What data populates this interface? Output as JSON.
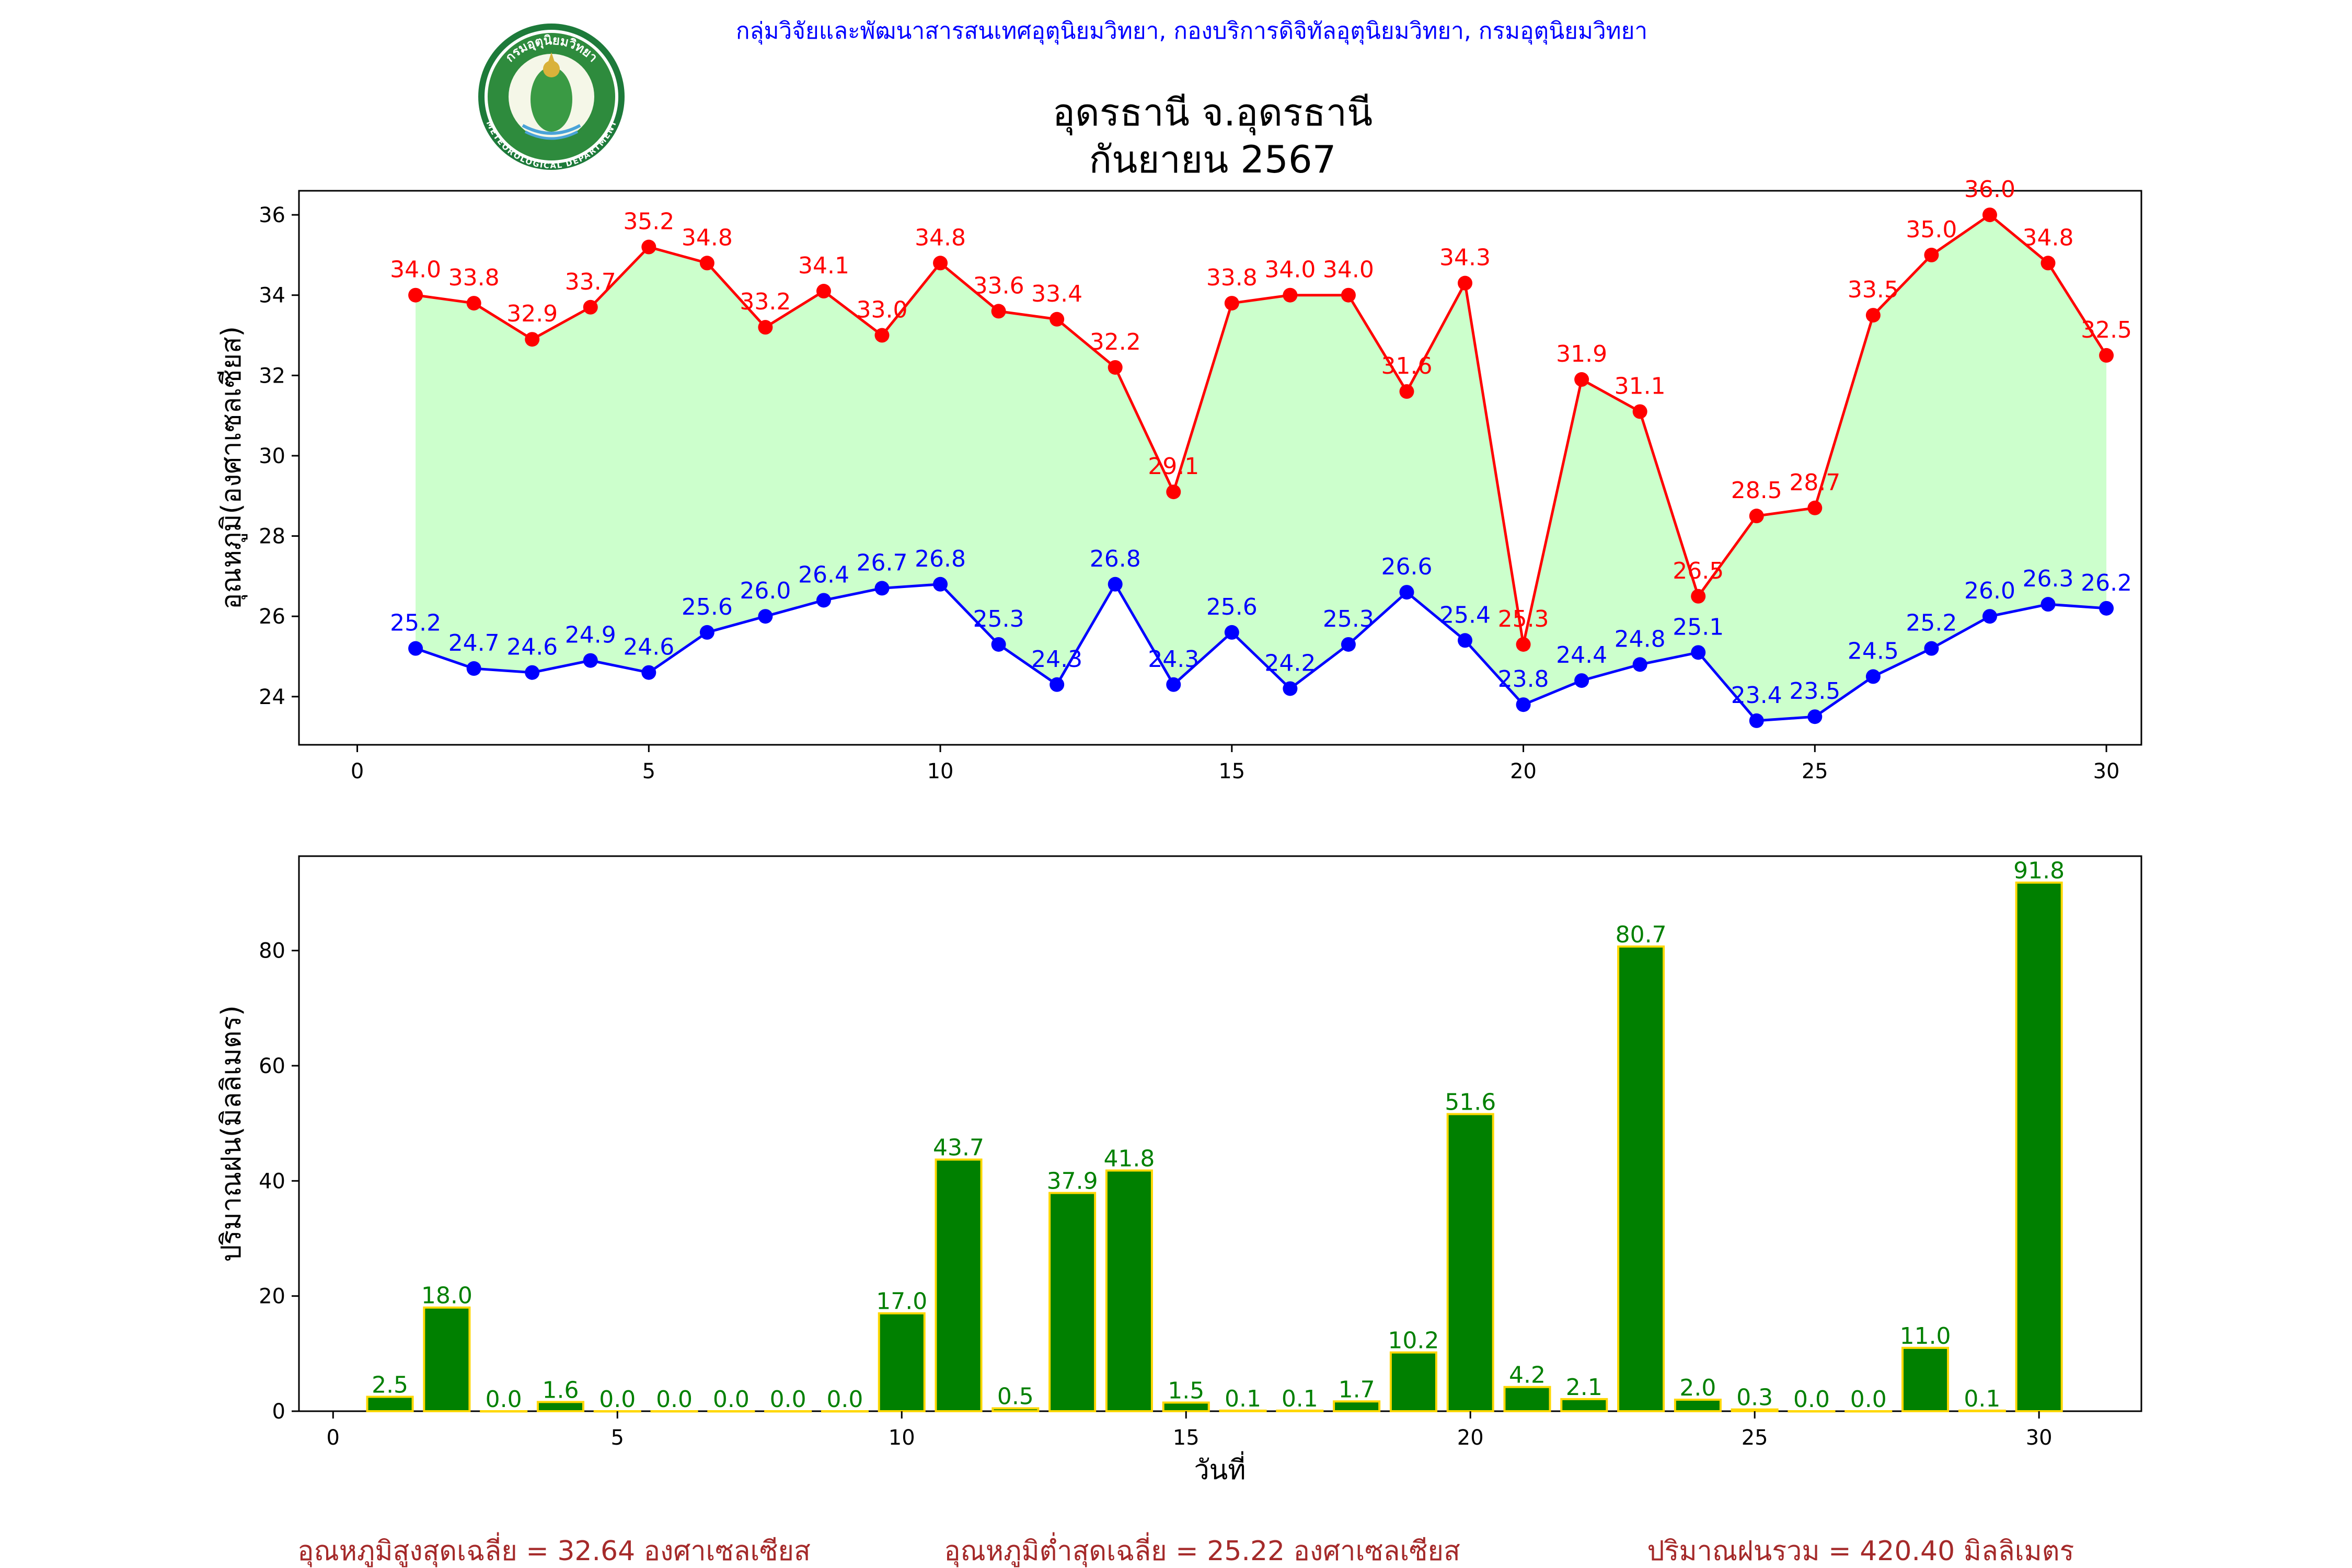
{
  "header": {
    "department_line": "กลุ่มวิจัยและพัฒนาสารสนเทศอุตุนิยมวิทยา, กองบริการดิจิทัลอุตุนิยมวิทยา, กรมอุตุนิยมวิทยา",
    "title_line1": "อุดรธานี จ.อุดรธานี",
    "title_line2": "กันยายน 2567",
    "logo_top_text": "กรมอุตุนิยมวิทยา",
    "logo_bottom_text": "METEOROLOGICAL DEPARTMENT"
  },
  "colors": {
    "max_line": "#ff0000",
    "min_line": "#0000ff",
    "fill_between": "#ccffcc",
    "rain_bar": "#008000",
    "rain_bar_edge": "#ffd700",
    "rain_label": "#008000",
    "footer_text": "#a52a2a",
    "department_text": "#0000ff"
  },
  "chart_data": [
    {
      "type": "line",
      "xlabel": "",
      "ylabel": "อุณหภูมิ(องศาเซลเซียส)",
      "xlim": [
        -1,
        30.6
      ],
      "ylim": [
        22.8,
        36.6
      ],
      "xticks": [
        0,
        5,
        10,
        15,
        20,
        25,
        30
      ],
      "yticks": [
        24,
        26,
        28,
        30,
        32,
        34,
        36
      ],
      "x": [
        1,
        2,
        3,
        4,
        5,
        6,
        7,
        8,
        9,
        10,
        11,
        12,
        13,
        14,
        15,
        16,
        17,
        18,
        19,
        20,
        21,
        22,
        23,
        24,
        25,
        26,
        27,
        28,
        29,
        30
      ],
      "fill_between_series": true,
      "series": [
        {
          "color": "#ff0000",
          "values": [
            34.0,
            33.8,
            32.9,
            33.7,
            35.2,
            34.8,
            33.2,
            34.1,
            33.0,
            34.8,
            33.6,
            33.4,
            32.2,
            29.1,
            33.8,
            34.0,
            34.0,
            31.6,
            34.3,
            25.3,
            31.9,
            31.1,
            26.5,
            28.5,
            28.7,
            33.5,
            35.0,
            36.0,
            34.8,
            32.5
          ]
        },
        {
          "color": "#0000ff",
          "values": [
            25.2,
            24.7,
            24.6,
            24.9,
            24.6,
            25.6,
            26.0,
            26.4,
            26.7,
            26.8,
            25.3,
            24.3,
            26.8,
            24.3,
            25.6,
            24.2,
            25.3,
            26.6,
            25.4,
            23.8,
            24.4,
            24.8,
            25.1,
            23.4,
            23.5,
            24.5,
            25.2,
            26.0,
            26.3,
            26.2
          ]
        }
      ]
    },
    {
      "type": "bar",
      "xlabel": "วันที่",
      "ylabel": "ปริมาณฝน(มิลลิเมตร)",
      "xlim": [
        -0.6,
        31.8
      ],
      "ylim": [
        0,
        96.4
      ],
      "xticks": [
        0,
        5,
        10,
        15,
        20,
        25,
        30
      ],
      "yticks": [
        0,
        20,
        40,
        60,
        80
      ],
      "x": [
        1,
        2,
        3,
        4,
        5,
        6,
        7,
        8,
        9,
        10,
        11,
        12,
        13,
        14,
        15,
        16,
        17,
        18,
        19,
        20,
        21,
        22,
        23,
        24,
        25,
        26,
        27,
        28,
        29,
        30
      ],
      "values": [
        2.5,
        18.0,
        0.0,
        1.6,
        0.0,
        0.0,
        0.0,
        0.0,
        0.0,
        17.0,
        43.7,
        0.5,
        37.9,
        41.8,
        1.5,
        0.1,
        0.1,
        1.7,
        10.2,
        51.6,
        4.2,
        2.1,
        80.7,
        2.0,
        0.3,
        0.0,
        0.0,
        11.0,
        0.1,
        91.8
      ]
    }
  ],
  "footer": {
    "avg_max": "อุณหภูมิสูงสุดเฉลี่ย = 32.64 องศาเซลเซียส",
    "avg_min": "อุณหภูมิต่ำสุดเฉลี่ย = 25.22 องศาเซลเซียส",
    "total_rain": "ปริมาณฝนรวม = 420.40 มิลลิเมตร"
  }
}
